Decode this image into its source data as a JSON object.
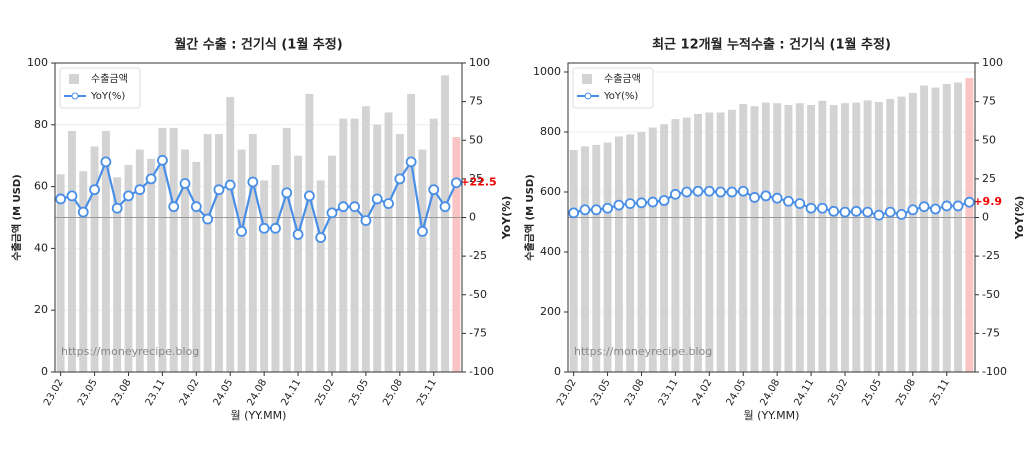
{
  "chart_data": [
    {
      "type": "combo",
      "title": "월간 수출 : 건기식 (1월 추정)",
      "x_label": "월 (YY.MM)",
      "y_label": "수출금액 (M USD)",
      "y2_label": "YoY(%)",
      "source": "https://moneyrecipe.blog",
      "categories": [
        "23.02",
        null,
        null,
        "23.05",
        null,
        null,
        "23.08",
        null,
        null,
        "23.11",
        null,
        null,
        "24.02",
        null,
        null,
        "24.05",
        null,
        null,
        "24.08",
        null,
        null,
        "24.11",
        null,
        null,
        "25.02",
        null,
        null,
        "25.05",
        null,
        null,
        "25.08",
        null,
        null,
        "25.11",
        null,
        null
      ],
      "ylim": [
        0,
        100
      ],
      "yticks": [
        0,
        20,
        40,
        60,
        80,
        100
      ],
      "y2lim": [
        -100,
        100
      ],
      "y2ticks": [
        -100,
        -75,
        -50,
        -25,
        0,
        25,
        50,
        75,
        100
      ],
      "grid": true,
      "series": [
        {
          "name": "수출금액",
          "color": "#d3d3d3",
          "highlight_color": "#f8c4c4",
          "values": [
            64,
            78,
            65,
            73,
            78,
            63,
            67,
            72,
            69,
            79,
            79,
            72,
            68,
            77,
            77,
            89,
            72,
            77,
            62,
            67,
            79,
            70,
            90,
            62,
            70,
            82,
            82,
            86,
            80,
            84,
            77,
            90,
            72,
            82,
            96,
            76
          ]
        },
        {
          "name": "YoY(%)",
          "color": "#4a8fe7",
          "axis": "y2",
          "values": [
            12,
            14,
            3.5,
            18,
            36,
            6,
            14,
            18,
            25,
            37,
            7,
            22,
            7,
            -1,
            18,
            21,
            -9,
            23,
            -7,
            -7,
            16,
            -11,
            14,
            -13,
            3,
            7,
            7,
            -2,
            12,
            9,
            25,
            36,
            -9,
            18,
            7,
            22.5
          ],
          "value_labels": [
            null,
            null,
            null,
            null,
            null,
            null,
            null,
            null,
            null,
            null,
            null,
            null,
            null,
            null,
            null,
            null,
            null,
            null,
            null,
            null,
            null,
            null,
            null,
            null,
            null,
            null,
            null,
            null,
            null,
            null,
            null,
            null,
            null,
            null,
            null,
            "+22.5"
          ]
        }
      ]
    },
    {
      "type": "combo",
      "title": "최근 12개월 누적수출 : 건기식 (1월 추정)",
      "x_label": "월 (YY.MM)",
      "y_label": "수출금액 (M USD)",
      "y2_label": "YoY(%)",
      "source": "https://moneyrecipe.blog",
      "categories": [
        "23.02",
        null,
        null,
        "23.05",
        null,
        null,
        "23.08",
        null,
        null,
        "23.11",
        null,
        null,
        "24.02",
        null,
        null,
        "24.05",
        null,
        null,
        "24.08",
        null,
        null,
        "24.11",
        null,
        null,
        "25.02",
        null,
        null,
        "25.05",
        null,
        null,
        "25.08",
        null,
        null,
        "25.11",
        null,
        null
      ],
      "ylim": [
        0,
        1030
      ],
      "yticks": [
        0,
        200,
        400,
        600,
        800,
        1000
      ],
      "y2lim": [
        -100,
        100
      ],
      "y2ticks": [
        -100,
        -75,
        -50,
        -25,
        0,
        25,
        50,
        75,
        100
      ],
      "grid": true,
      "series": [
        {
          "name": "수출금액",
          "color": "#d3d3d3",
          "highlight_color": "#f8c4c4",
          "values": [
            740,
            752,
            757,
            765,
            785,
            792,
            800,
            815,
            826,
            843,
            848,
            860,
            865,
            865,
            874,
            893,
            886,
            898,
            896,
            890,
            896,
            890,
            904,
            890,
            896,
            898,
            905,
            900,
            910,
            918,
            930,
            955,
            948,
            960,
            965,
            980
          ]
        },
        {
          "name": "YoY(%)",
          "color": "#4a8fe7",
          "axis": "y2",
          "values": [
            3,
            5,
            5,
            6,
            8,
            9,
            9.5,
            10,
            11,
            15,
            16.5,
            17,
            17,
            16.5,
            16.5,
            17,
            13,
            14,
            12.5,
            10.5,
            9,
            6,
            6,
            4,
            3.5,
            4,
            3.5,
            1.5,
            3.5,
            2,
            5,
            7,
            5.5,
            7.5,
            7.5,
            9.9
          ],
          "value_labels": [
            null,
            null,
            null,
            null,
            null,
            null,
            null,
            null,
            null,
            null,
            null,
            null,
            null,
            null,
            null,
            null,
            null,
            null,
            null,
            null,
            null,
            null,
            null,
            null,
            null,
            null,
            null,
            null,
            null,
            null,
            null,
            null,
            null,
            null,
            null,
            "+9.9"
          ]
        }
      ]
    }
  ]
}
